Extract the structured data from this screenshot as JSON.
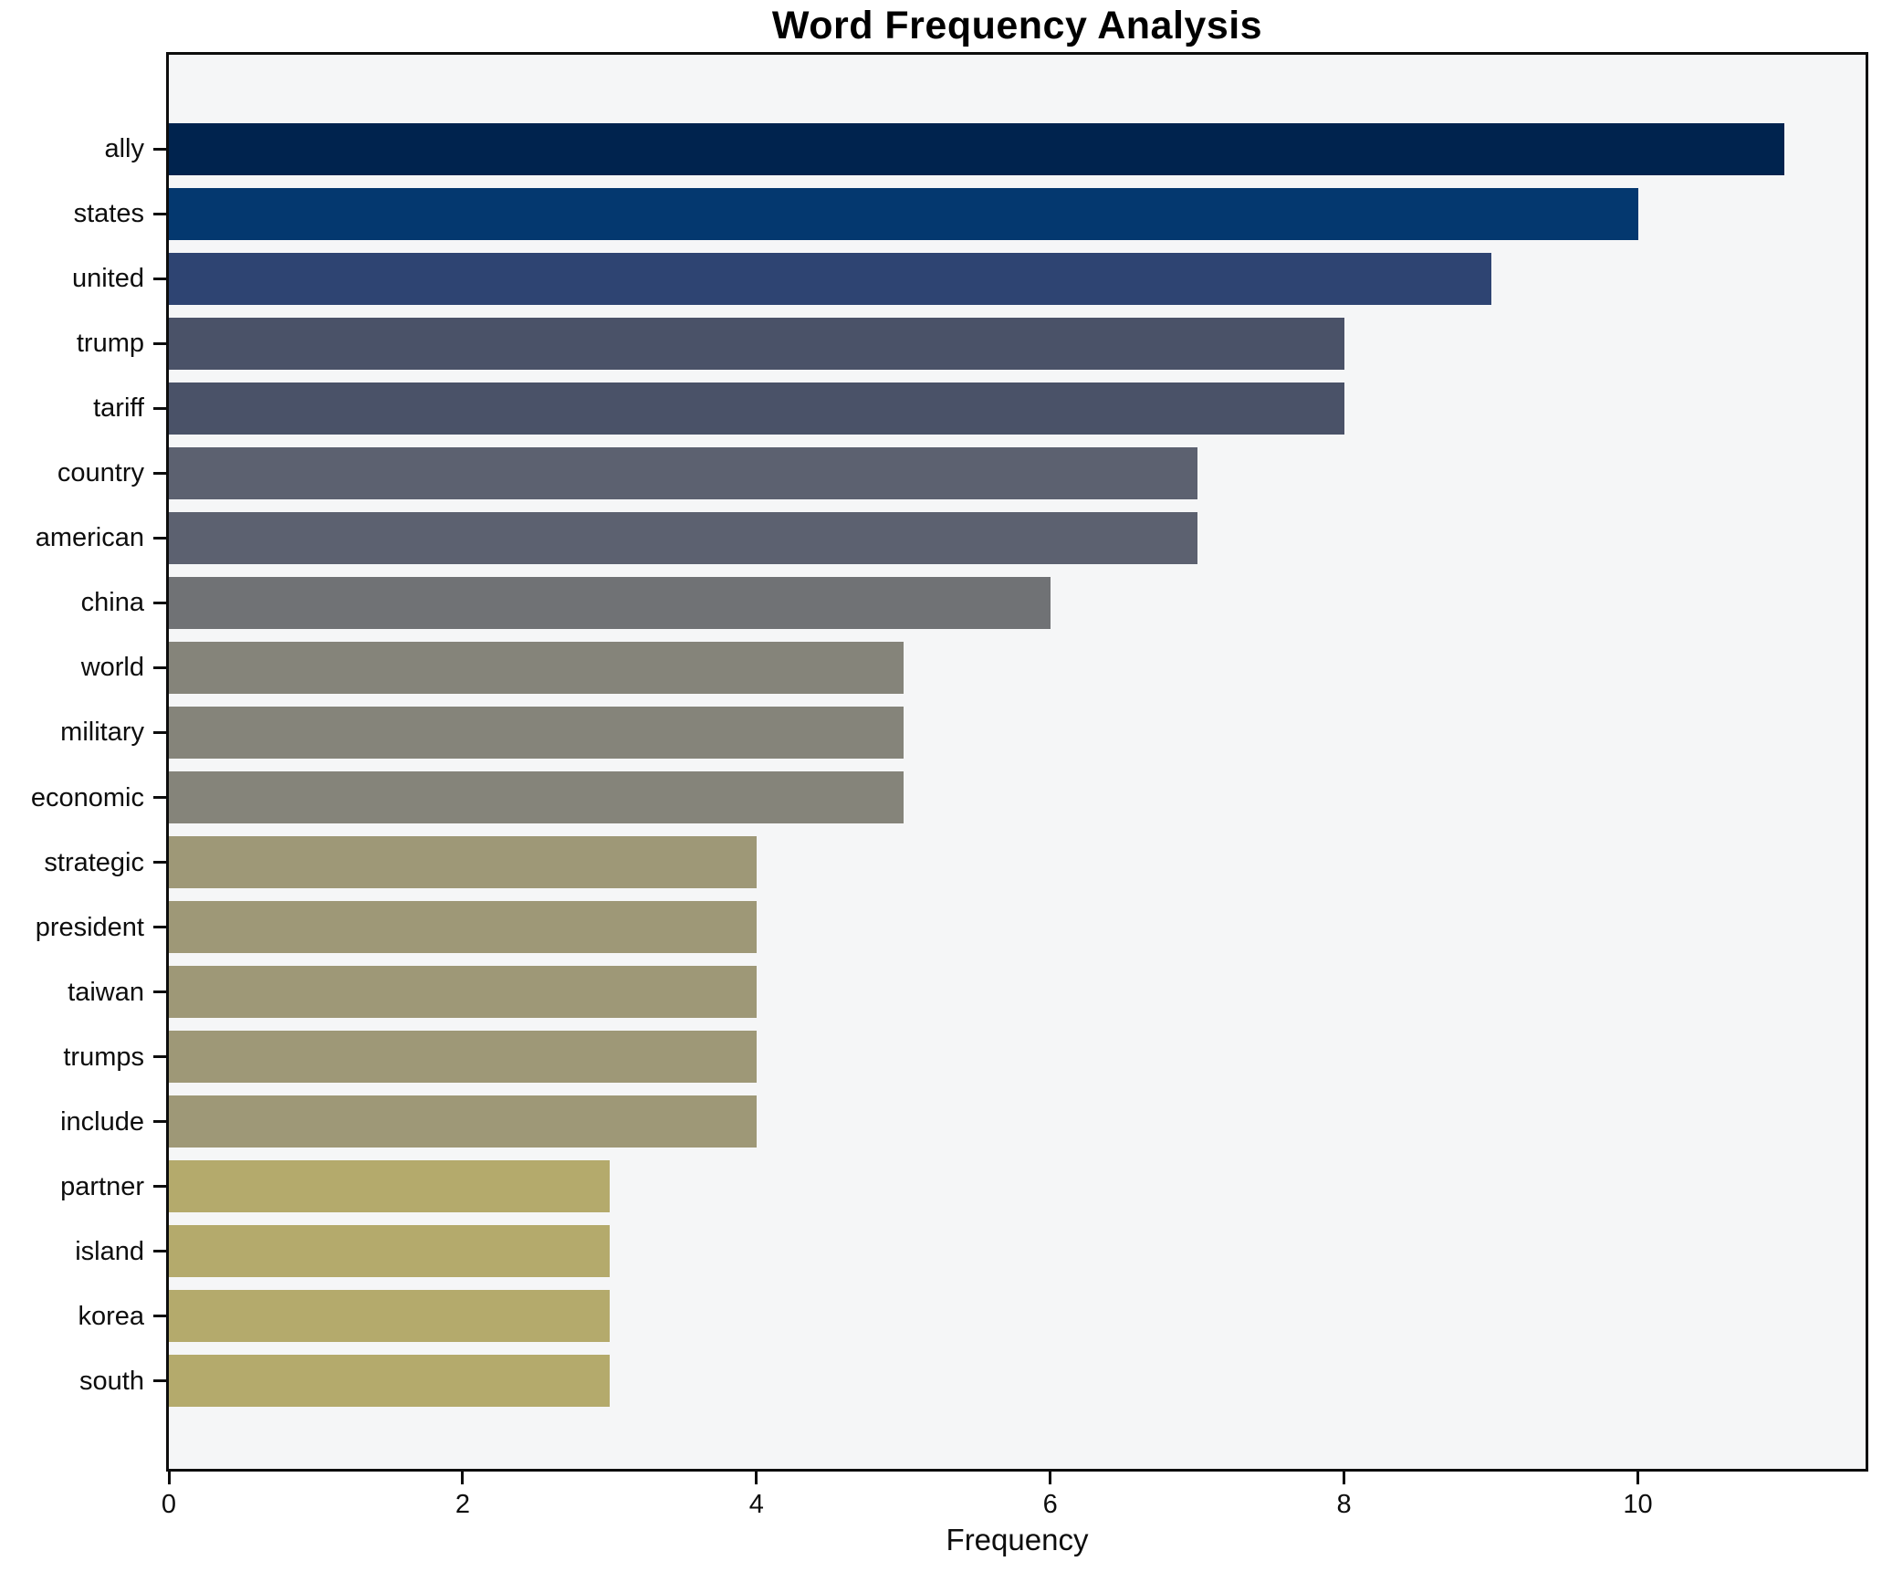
{
  "chart_data": {
    "type": "bar",
    "orientation": "horizontal",
    "title": "Word Frequency Analysis",
    "xlabel": "Frequency",
    "ylabel": "",
    "categories": [
      "ally",
      "states",
      "united",
      "trump",
      "tariff",
      "country",
      "american",
      "china",
      "world",
      "military",
      "economic",
      "strategic",
      "president",
      "taiwan",
      "trumps",
      "include",
      "partner",
      "island",
      "korea",
      "south"
    ],
    "values": [
      11,
      10,
      9,
      8,
      8,
      7,
      7,
      6,
      5,
      5,
      5,
      4,
      4,
      4,
      4,
      4,
      3,
      3,
      3,
      3
    ],
    "bar_colors": [
      "#00234e",
      "#04386f",
      "#2e4472",
      "#4a5268",
      "#4a5268",
      "#5c6170",
      "#5c6170",
      "#707275",
      "#85847a",
      "#85847a",
      "#85847a",
      "#9e9877",
      "#9e9877",
      "#9e9877",
      "#9e9877",
      "#9e9877",
      "#b4aa6c",
      "#b4aa6c",
      "#b4aa6c",
      "#b4aa6c"
    ],
    "xticks": [
      0,
      2,
      4,
      6,
      8,
      10
    ],
    "xlim": [
      0,
      11.55
    ],
    "grid": false,
    "legend_position": "none",
    "plot_background": "#f5f6f7",
    "spine_color": "#0d0d0d"
  }
}
